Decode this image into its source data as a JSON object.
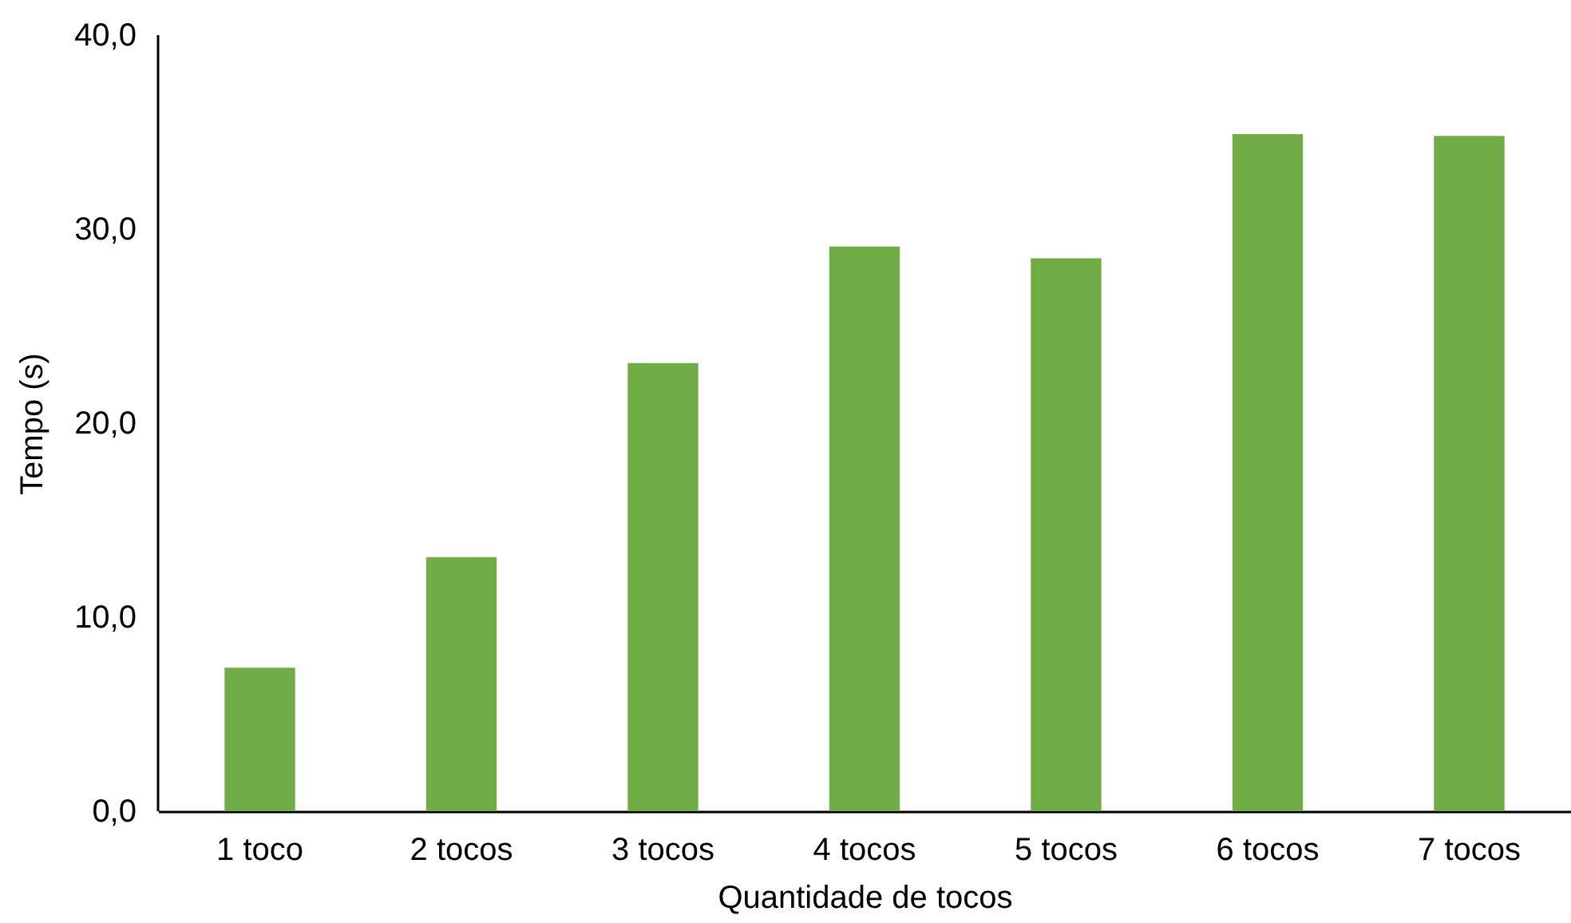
{
  "chart_data": {
    "type": "bar",
    "xlabel": "Quantidade de tocos",
    "ylabel": "Tempo (s)",
    "categories": [
      "1 toco",
      "2 tocos",
      "3 tocos",
      "4 tocos",
      "5 tocos",
      "6 tocos",
      "7 tocos"
    ],
    "values": [
      7.4,
      13.1,
      23.1,
      29.1,
      28.5,
      34.9,
      34.8
    ],
    "color": "#70ad47",
    "ylim": [
      0,
      40
    ],
    "yticks": [
      {
        "value": 0,
        "label": "0,0"
      },
      {
        "value": 10,
        "label": "10,0"
      },
      {
        "value": 20,
        "label": "20,0"
      },
      {
        "value": 30,
        "label": "30,0"
      },
      {
        "value": 40,
        "label": "40,0"
      }
    ],
    "grid": false
  }
}
